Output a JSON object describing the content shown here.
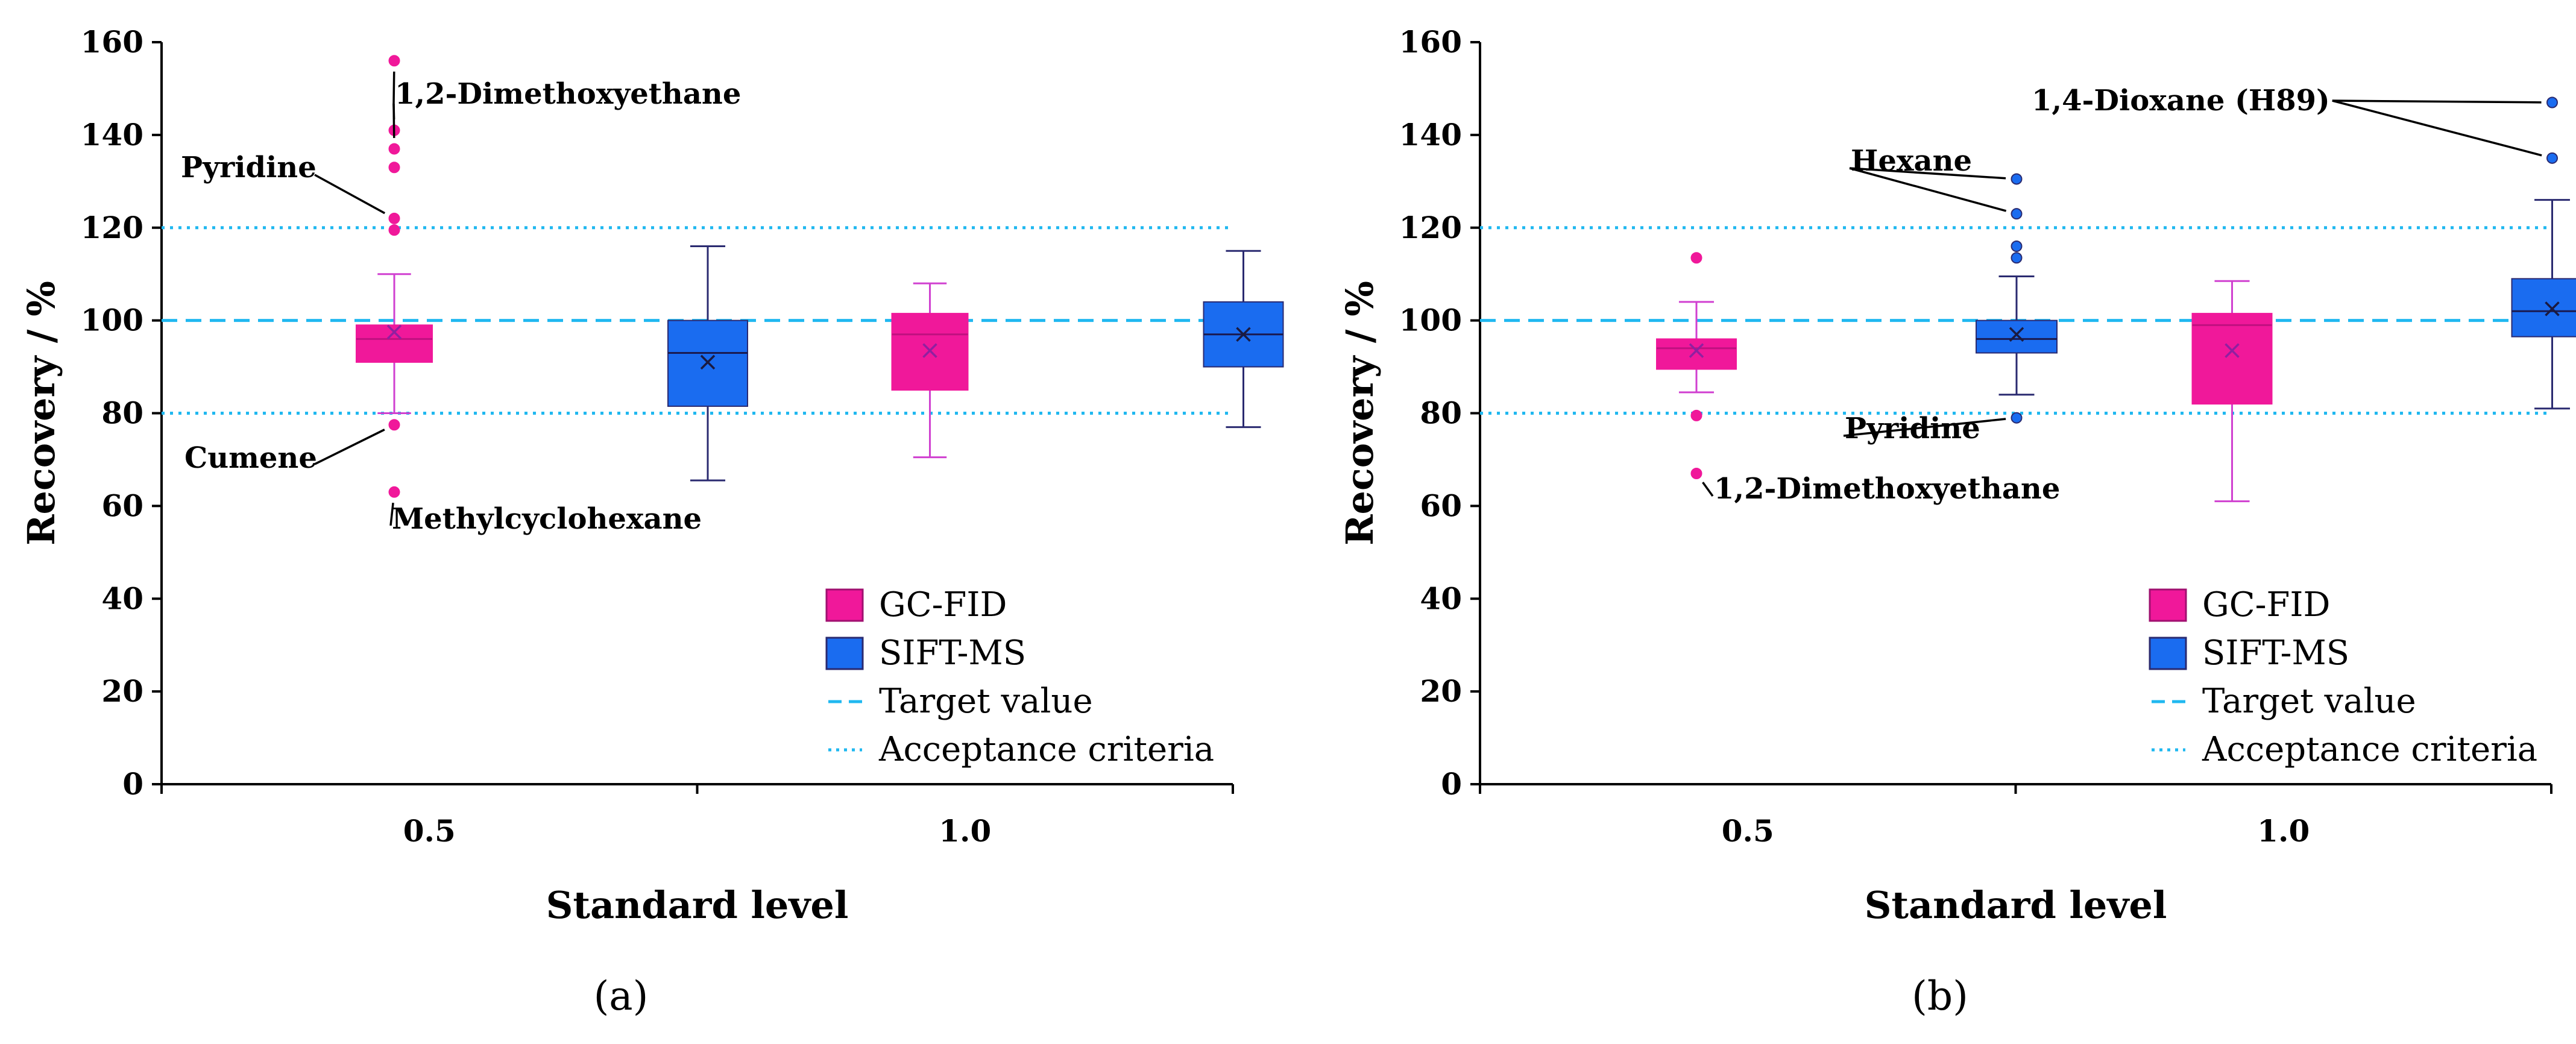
{
  "colors": {
    "gcfid": "#f0189a",
    "siftms": "#1a6cf0",
    "gcfid_whisker": "#d040d0",
    "siftms_whisker": "#2a2a70",
    "target": "#20b8f0",
    "acceptance": "#20b8f0",
    "annotation": "#000000"
  },
  "chart_data": [
    {
      "panel": "(a)",
      "type": "box",
      "xlabel": "Standard level",
      "ylabel": "Recovery / %",
      "ylim": [
        0,
        160
      ],
      "yticks": [
        "0",
        "20",
        "40",
        "60",
        "80",
        "100",
        "120",
        "140",
        "160"
      ],
      "categories": [
        "0.5",
        "1.0"
      ],
      "target_value": 100,
      "acceptance_criteria": [
        80,
        120
      ],
      "legend": [
        "GC-FID",
        "SIFT-MS",
        "Target value",
        "Acceptance criteria"
      ],
      "series": [
        {
          "name": "GC-FID",
          "boxes": [
            {
              "category": "0.5",
              "min": 80,
              "q1": 91,
              "median": 96,
              "q3": 99,
              "max": 110,
              "mean": 97.5,
              "outliers": [
                156,
                141,
                137,
                133,
                122,
                119.5,
                77.5,
                63
              ]
            },
            {
              "category": "1.0",
              "min": 70.5,
              "q1": 85,
              "median": 97,
              "q3": 101.5,
              "max": 108,
              "mean": 93.5,
              "outliers": []
            }
          ]
        },
        {
          "name": "SIFT-MS",
          "boxes": [
            {
              "category": "0.5",
              "min": 65.5,
              "q1": 81.5,
              "median": 93,
              "q3": 100,
              "max": 116,
              "mean": 91,
              "outliers": []
            },
            {
              "category": "1.0",
              "min": 77,
              "q1": 90,
              "median": 97,
              "q3": 104,
              "max": 115,
              "mean": 97,
              "outliers": []
            }
          ]
        }
      ],
      "annotations": [
        {
          "text": "1,2-Dimethoxyethane",
          "targets": [
            [
              0,
              156
            ],
            [
              0,
              141
            ],
            [
              0,
              137
            ]
          ]
        },
        {
          "text": "Pyridine",
          "targets": [
            [
              0,
              122
            ]
          ]
        },
        {
          "text": "Cumene",
          "targets": [
            [
              0,
              77.5
            ]
          ]
        },
        {
          "text": "Methylcyclohexane",
          "targets": [
            [
              0,
              63
            ]
          ]
        }
      ]
    },
    {
      "panel": "(b)",
      "type": "box",
      "xlabel": "Standard level",
      "ylabel": "Recovery / %",
      "ylim": [
        0,
        160
      ],
      "yticks": [
        "0",
        "20",
        "40",
        "60",
        "80",
        "100",
        "120",
        "140",
        "160"
      ],
      "categories": [
        "0.5",
        "1.0"
      ],
      "target_value": 100,
      "acceptance_criteria": [
        80,
        120
      ],
      "legend": [
        "GC-FID",
        "SIFT-MS",
        "Target value",
        "Acceptance criteria"
      ],
      "series": [
        {
          "name": "GC-FID",
          "boxes": [
            {
              "category": "0.5",
              "min": 84.5,
              "q1": 89.5,
              "median": 94,
              "q3": 96,
              "max": 104,
              "mean": 93.5,
              "outliers": [
                113.5,
                79.5,
                67
              ]
            },
            {
              "category": "1.0",
              "min": 61,
              "q1": 82,
              "median": 99,
              "q3": 101.5,
              "max": 108.5,
              "mean": 93.5,
              "outliers": []
            }
          ]
        },
        {
          "name": "SIFT-MS",
          "boxes": [
            {
              "category": "0.5",
              "min": 84,
              "q1": 93,
              "median": 96,
              "q3": 100,
              "max": 109.5,
              "mean": 97,
              "outliers": [
                130.5,
                123,
                116,
                113.5,
                79
              ]
            },
            {
              "category": "1.0",
              "min": 81,
              "q1": 96.5,
              "median": 102,
              "q3": 109,
              "max": 126,
              "mean": 102.5,
              "outliers": [
                147,
                135
              ]
            }
          ]
        }
      ],
      "annotations": [
        {
          "text": "Hexane",
          "targets": [
            [
              1,
              130.5
            ],
            [
              1,
              123
            ]
          ]
        },
        {
          "text": "Pyridine",
          "targets": [
            [
              1,
              79
            ]
          ]
        },
        {
          "text": "1,2-Dimethoxyethane",
          "targets": [
            [
              0,
              67
            ]
          ]
        },
        {
          "text": "1,4-Dioxane (H89)",
          "targets": [
            [
              1,
              147
            ],
            [
              1,
              135
            ]
          ]
        }
      ]
    }
  ]
}
